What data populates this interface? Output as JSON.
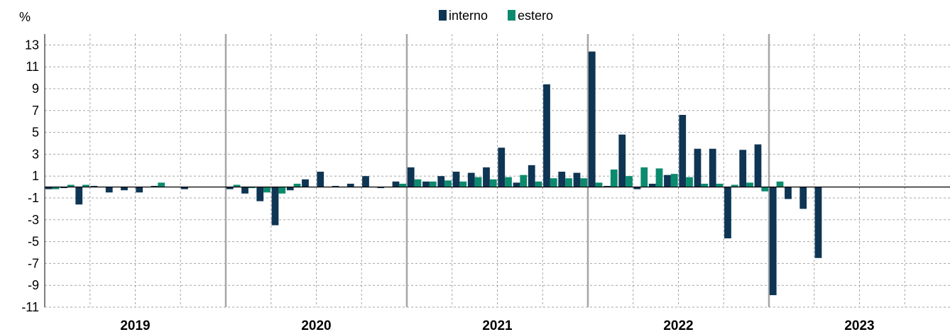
{
  "chart_data": {
    "type": "bar",
    "ylabel": "%",
    "ylim": [
      -11,
      14
    ],
    "yticks": [
      "13",
      "11",
      "9",
      "7",
      "5",
      "3",
      "1",
      "-1",
      "-3",
      "-5",
      "-7",
      "-9",
      "-11"
    ],
    "ytick_values": [
      13,
      11,
      9,
      7,
      5,
      3,
      1,
      -1,
      -3,
      -5,
      -7,
      -9,
      -11
    ],
    "years": [
      "2019",
      "2020",
      "2021",
      "2022",
      "2023"
    ],
    "months_per_year": 12,
    "grid": true,
    "legend_position": "top-center",
    "series": [
      {
        "name": "interno",
        "color": "#0e3553",
        "values": [
          -0.2,
          -0.1,
          -1.6,
          0.1,
          -0.5,
          -0.3,
          -0.5,
          0.1,
          null,
          -0.2,
          null,
          null,
          -0.2,
          -0.6,
          -1.3,
          -3.5,
          -0.3,
          0.7,
          1.4,
          0.1,
          0.3,
          1.0,
          -0.1,
          0.5,
          1.8,
          0.5,
          1.0,
          1.4,
          1.3,
          1.8,
          3.6,
          0.4,
          2.0,
          9.4,
          1.4,
          1.3,
          12.4,
          0.1,
          4.8,
          -0.2,
          0.3,
          1.1,
          6.6,
          3.5,
          3.5,
          -4.7,
          3.4,
          3.9,
          -9.9,
          -1.1,
          -2.0,
          -6.5,
          null,
          null,
          null,
          null,
          null,
          null,
          null,
          null
        ]
      },
      {
        "name": "estero",
        "color": "#0b8a6e",
        "values": [
          -0.2,
          0.2,
          0.2,
          null,
          null,
          null,
          null,
          0.4,
          null,
          null,
          null,
          null,
          0.2,
          -0.1,
          -0.5,
          -0.6,
          0.3,
          null,
          null,
          null,
          null,
          null,
          null,
          0.3,
          0.7,
          0.5,
          0.6,
          0.5,
          0.9,
          0.7,
          0.9,
          1.1,
          0.5,
          0.8,
          0.8,
          0.8,
          0.4,
          1.6,
          1.0,
          1.8,
          1.7,
          1.2,
          0.9,
          0.3,
          0.3,
          0.2,
          0.4,
          -0.4,
          0.5,
          null,
          null,
          null,
          null,
          null,
          null,
          null,
          null,
          null,
          null,
          null
        ]
      }
    ]
  }
}
